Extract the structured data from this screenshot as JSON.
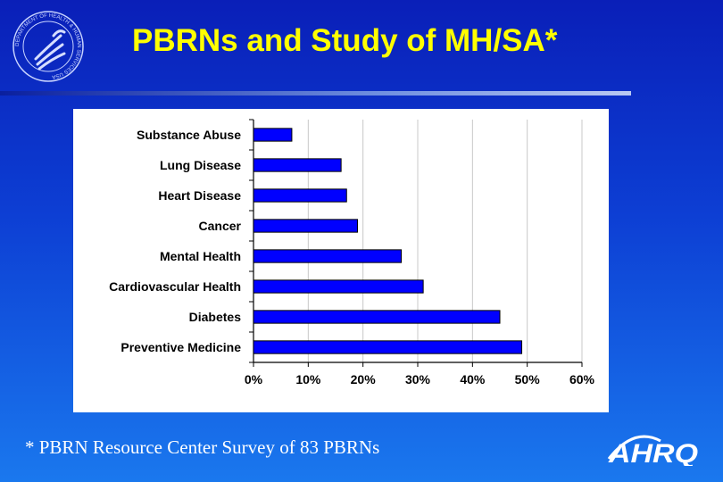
{
  "slide": {
    "title": "PBRNs and Study of MH/SA*",
    "footnote": "* PBRN Resource Center Survey of 83 PBRNs",
    "logo_text": "AHRQ",
    "seal_text": "DEPARTMENT OF HEALTH & HUMAN SERVICES USA"
  },
  "colors": {
    "bar_fill": "#0000ff",
    "bar_stroke": "#000000",
    "title": "#ffff00",
    "gridline": "#c8c8c8"
  },
  "chart_data": {
    "type": "bar",
    "orientation": "horizontal",
    "categories": [
      "Substance Abuse",
      "Lung Disease",
      "Heart Disease",
      "Cancer",
      "Mental Health",
      "Cardiovascular Health",
      "Diabetes",
      "Preventive Medicine"
    ],
    "values": [
      0.07,
      0.16,
      0.17,
      0.19,
      0.27,
      0.31,
      0.45,
      0.49
    ],
    "xlim": [
      0,
      0.6
    ],
    "xticks": [
      {
        "value": 0,
        "label": "0%"
      },
      {
        "value": 0.1,
        "label": "10%"
      },
      {
        "value": 0.2,
        "label": "20%"
      },
      {
        "value": 0.3,
        "label": "30%"
      },
      {
        "value": 0.4,
        "label": "40%"
      },
      {
        "value": 0.5,
        "label": "50%"
      },
      {
        "value": 0.6,
        "label": "60%"
      }
    ],
    "grid": true,
    "title": "",
    "xlabel": "",
    "ylabel": ""
  }
}
